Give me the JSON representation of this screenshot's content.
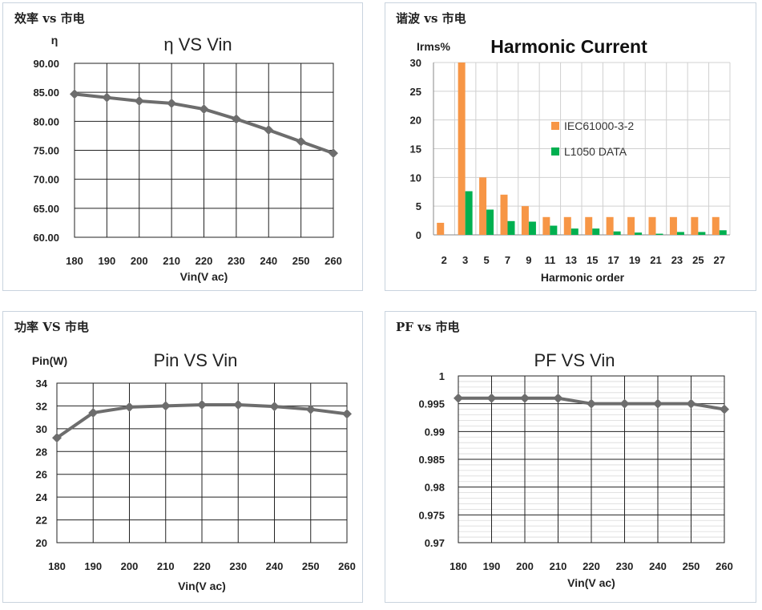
{
  "panels": {
    "eff": {
      "label": "效率 vs 市电"
    },
    "harm": {
      "label": "谐波 vs 市电"
    },
    "pin": {
      "label": "功率 VS 市电"
    },
    "pf": {
      "label": "PF vs 市电"
    }
  },
  "chart_data": [
    {
      "id": "eff",
      "type": "line",
      "title": "η  VS Vin",
      "xlabel": "Vin(V ac)",
      "ylabel": "η",
      "x": [
        180,
        190,
        200,
        210,
        220,
        230,
        240,
        250,
        260
      ],
      "x_tick_labels": [
        "180",
        "190",
        "200",
        "210",
        "220",
        "230",
        "240",
        "250",
        "260"
      ],
      "y_tick_labels": [
        "60.00",
        "65.00",
        "70.00",
        "75.00",
        "80.00",
        "85.00",
        "90.00"
      ],
      "series": [
        {
          "values": [
            84.7,
            84.1,
            83.5,
            83.1,
            82.1,
            80.4,
            78.5,
            76.5,
            74.5
          ]
        }
      ],
      "ylim": [
        60,
        90
      ],
      "xlim": [
        180,
        260
      ],
      "grid": true,
      "color": "#6d6d6d"
    },
    {
      "id": "harm",
      "type": "bar",
      "title": "Harmonic Current",
      "xlabel": "Harmonic order",
      "ylabel": "Irms%",
      "categories": [
        "2",
        "3",
        "5",
        "7",
        "9",
        "11",
        "13",
        "15",
        "17",
        "19",
        "21",
        "23",
        "25",
        "27"
      ],
      "y_tick_labels": [
        "0",
        "5",
        "10",
        "15",
        "20",
        "25",
        "30"
      ],
      "series": [
        {
          "name": "IEC61000-3-2",
          "color": "#f79646",
          "values": [
            2.1,
            30,
            10,
            7,
            5,
            3.1,
            3.1,
            3.1,
            3.1,
            3.1,
            3.1,
            3.1,
            3.1,
            3.1
          ]
        },
        {
          "name": "L1050 DATA",
          "color": "#00b050",
          "values": [
            0,
            7.6,
            4.4,
            2.4,
            2.3,
            1.6,
            1.1,
            1.1,
            0.6,
            0.4,
            0.2,
            0.5,
            0.5,
            0.8
          ]
        }
      ],
      "ylim": [
        0,
        30
      ],
      "grid": true,
      "legend": "center-right"
    },
    {
      "id": "pin",
      "type": "line",
      "title": "Pin VS Vin",
      "xlabel": "Vin(V ac)",
      "ylabel": "Pin(W)",
      "x": [
        180,
        190,
        200,
        210,
        220,
        230,
        240,
        250,
        260
      ],
      "x_tick_labels": [
        "180",
        "190",
        "200",
        "210",
        "220",
        "230",
        "240",
        "250",
        "260"
      ],
      "y_tick_labels": [
        "20",
        "22",
        "24",
        "26",
        "28",
        "30",
        "32",
        "34"
      ],
      "series": [
        {
          "values": [
            29.2,
            31.4,
            31.9,
            32.0,
            32.1,
            32.1,
            31.95,
            31.7,
            31.3
          ]
        }
      ],
      "ylim": [
        20,
        34
      ],
      "xlim": [
        180,
        260
      ],
      "grid": true,
      "color": "#6d6d6d"
    },
    {
      "id": "pf",
      "type": "line",
      "title": "PF VS Vin",
      "xlabel": "Vin(V ac)",
      "ylabel": "",
      "x": [
        180,
        190,
        200,
        210,
        220,
        230,
        240,
        250,
        260
      ],
      "x_tick_labels": [
        "180",
        "190",
        "200",
        "210",
        "220",
        "230",
        "240",
        "250",
        "260"
      ],
      "y_tick_labels": [
        "0.97",
        "0.975",
        "0.98",
        "0.985",
        "0.99",
        "0.995",
        "1"
      ],
      "series": [
        {
          "values": [
            0.996,
            0.996,
            0.996,
            0.996,
            0.995,
            0.995,
            0.995,
            0.995,
            0.994
          ]
        }
      ],
      "ylim": [
        0.97,
        1.0
      ],
      "xlim": [
        180,
        260
      ],
      "grid": true,
      "minor_grid": true,
      "color": "#6d6d6d"
    }
  ]
}
